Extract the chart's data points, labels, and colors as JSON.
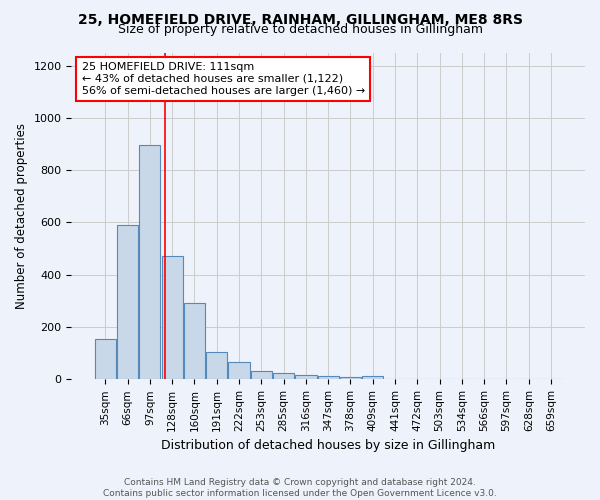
{
  "title1": "25, HOMEFIELD DRIVE, RAINHAM, GILLINGHAM, ME8 8RS",
  "title2": "Size of property relative to detached houses in Gillingham",
  "xlabel": "Distribution of detached houses by size in Gillingham",
  "ylabel": "Number of detached properties",
  "footnote1": "Contains HM Land Registry data © Crown copyright and database right 2024.",
  "footnote2": "Contains public sector information licensed under the Open Government Licence v3.0.",
  "annotation_line1": "25 HOMEFIELD DRIVE: 111sqm",
  "annotation_line2": "← 43% of detached houses are smaller (1,122)",
  "annotation_line3": "56% of semi-detached houses are larger (1,460) →",
  "bar_labels": [
    "35sqm",
    "66sqm",
    "97sqm",
    "128sqm",
    "160sqm",
    "191sqm",
    "222sqm",
    "253sqm",
    "285sqm",
    "316sqm",
    "347sqm",
    "378sqm",
    "409sqm",
    "441sqm",
    "472sqm",
    "503sqm",
    "534sqm",
    "566sqm",
    "597sqm",
    "628sqm",
    "659sqm"
  ],
  "bar_values": [
    155,
    590,
    895,
    470,
    290,
    105,
    65,
    30,
    25,
    18,
    12,
    10,
    12,
    0,
    0,
    0,
    0,
    0,
    0,
    0,
    0
  ],
  "bar_color": "#c8d8e8",
  "bar_edge_color": "#5588bb",
  "grid_color": "#cccccc",
  "background_color": "#eef2fa",
  "red_line_x": 2.67,
  "ylim": [
    0,
    1250
  ],
  "yticks": [
    0,
    200,
    400,
    600,
    800,
    1000,
    1200
  ],
  "title1_fontsize": 10,
  "title2_fontsize": 9,
  "ylabel_fontsize": 8.5,
  "xlabel_fontsize": 9,
  "tick_fontsize": 8,
  "xtick_fontsize": 7.5,
  "footnote_fontsize": 6.5,
  "annotation_fontsize": 8
}
